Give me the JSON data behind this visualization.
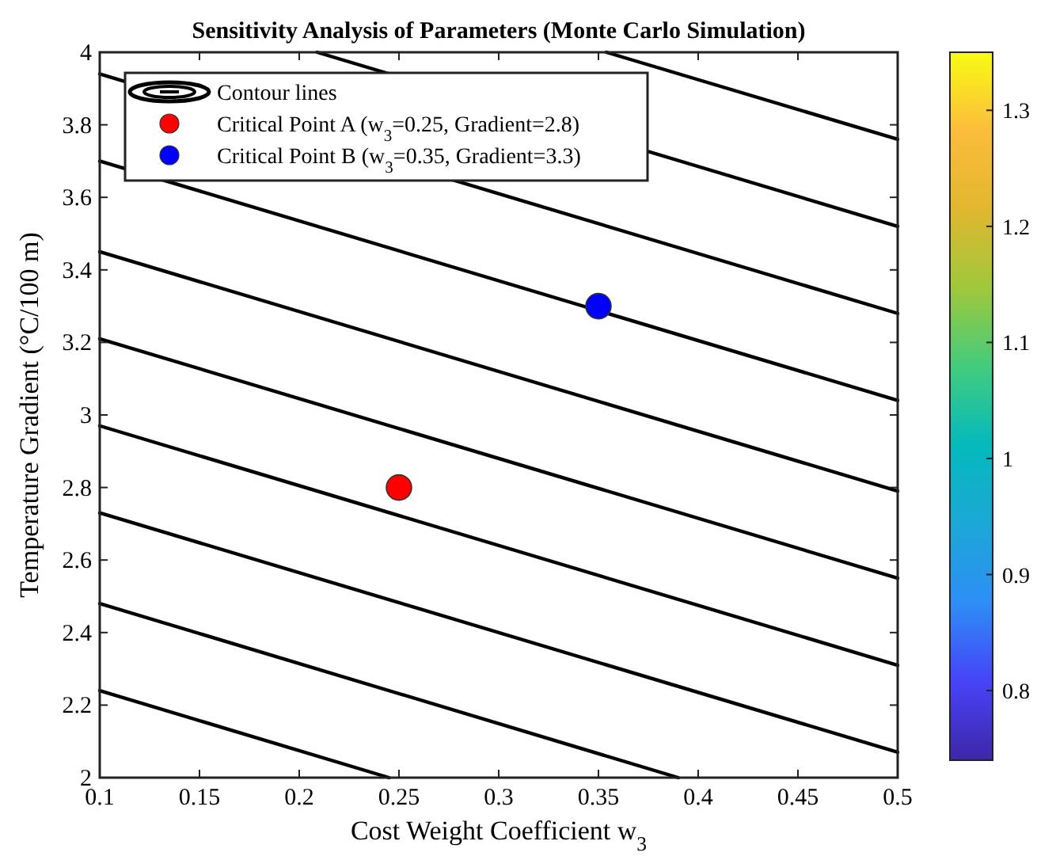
{
  "chart_data": {
    "type": "line",
    "title": "Sensitivity Analysis of Parameters (Monte Carlo Simulation)",
    "xlabel": "Cost Weight Coefficient w$_{3}$",
    "ylabel": "Temperature Gradient (°C/100 m)",
    "xlim": [
      0.1,
      0.5
    ],
    "xticks": [
      0.1,
      0.15,
      0.2,
      0.25,
      0.3,
      0.35,
      0.4,
      0.45,
      0.5
    ],
    "ylim": [
      2,
      4
    ],
    "yticks": [
      2,
      2.2,
      2.4,
      2.6,
      2.8,
      3,
      3.2,
      3.4,
      3.6,
      3.8,
      4
    ],
    "clim": [
      0.74,
      1.35
    ],
    "cticks": [
      0.8,
      0.9,
      1,
      1.1,
      1.2,
      1.3
    ],
    "grid": false,
    "legend": "top left",
    "series": [
      {
        "name": "Contour lines",
        "color": "#000000",
        "x": [
          0.1,
          0.245
        ],
        "values": [
          2.24,
          2.0
        ]
      },
      {
        "color": "#000000",
        "x": [
          0.1,
          0.39
        ],
        "values": [
          2.48,
          2.0
        ]
      },
      {
        "color": "#000000",
        "x": [
          0.1,
          0.5
        ],
        "values": [
          2.73,
          2.07
        ]
      },
      {
        "color": "#000000",
        "x": [
          0.1,
          0.5
        ],
        "values": [
          2.97,
          2.31
        ]
      },
      {
        "color": "#000000",
        "x": [
          0.1,
          0.5
        ],
        "values": [
          3.21,
          2.55
        ]
      },
      {
        "color": "#000000",
        "x": [
          0.1,
          0.5
        ],
        "values": [
          3.45,
          2.79
        ]
      },
      {
        "color": "#000000",
        "x": [
          0.1,
          0.5
        ],
        "values": [
          3.7,
          3.04
        ]
      },
      {
        "color": "#000000",
        "x": [
          0.1,
          0.5
        ],
        "values": [
          3.94,
          3.28
        ]
      },
      {
        "color": "#000000",
        "x": [
          0.209,
          0.5
        ],
        "values": [
          4.0,
          3.52
        ]
      },
      {
        "color": "#000000",
        "x": [
          0.354,
          0.5
        ],
        "values": [
          4.0,
          3.76
        ]
      },
      {
        "name": "Critical Point A (w$_{3}$=0.25, Gradient=2.8)",
        "type": "scatter",
        "color": "#ff0000",
        "x": [
          0.25
        ],
        "values": [
          2.8
        ]
      },
      {
        "name": "Critical Point B (w$_{3}$=0.35, Gradient=3.3)",
        "type": "scatter",
        "color": "#0000ff",
        "x": [
          0.35
        ],
        "values": [
          3.3
        ]
      }
    ]
  }
}
